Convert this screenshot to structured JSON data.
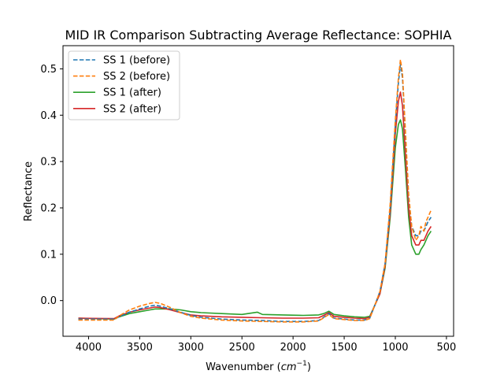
{
  "chart_data": {
    "type": "line",
    "title": "MID IR Comparison Subtracting Average Reflectance: SOPHIA",
    "xlabel_main": "Wavenumber (",
    "xlabel_unit_base": "cm",
    "xlabel_unit_exp": "−1",
    "xlabel_close": ")",
    "ylabel": "Reflectance",
    "xlim": [
      4250,
      430
    ],
    "ylim": [
      -0.077,
      0.55
    ],
    "x_reversed": true,
    "xticks": [
      4000,
      3500,
      3000,
      2500,
      2000,
      1500,
      1000,
      500
    ],
    "xtick_labels": [
      "4000",
      "3500",
      "3000",
      "2500",
      "2000",
      "1500",
      "1000",
      "500"
    ],
    "yticks": [
      0.0,
      0.1,
      0.2,
      0.3,
      0.4,
      0.5
    ],
    "ytick_labels": [
      "0.0",
      "0.1",
      "0.2",
      "0.3",
      "0.4",
      "0.5"
    ],
    "grid": false,
    "legend_position": "top-left",
    "series": [
      {
        "name": "SS 1 (before)",
        "color": "#1f77b4",
        "dash": "dashed",
        "x": [
          4100,
          3750,
          3700,
          3600,
          3500,
          3400,
          3350,
          3300,
          3200,
          3100,
          3000,
          2900,
          2700,
          2500,
          2300,
          2100,
          1900,
          1750,
          1700,
          1650,
          1600,
          1500,
          1400,
          1300,
          1250,
          1200,
          1150,
          1100,
          1050,
          1000,
          970,
          950,
          930,
          900,
          870,
          840,
          800,
          770,
          750,
          720,
          700,
          680,
          650
        ],
        "y": [
          -0.04,
          -0.04,
          -0.035,
          -0.025,
          -0.018,
          -0.012,
          -0.01,
          -0.012,
          -0.018,
          -0.025,
          -0.032,
          -0.036,
          -0.04,
          -0.042,
          -0.043,
          -0.045,
          -0.045,
          -0.043,
          -0.036,
          -0.028,
          -0.038,
          -0.04,
          -0.042,
          -0.042,
          -0.038,
          -0.01,
          0.02,
          0.08,
          0.2,
          0.38,
          0.47,
          0.51,
          0.48,
          0.35,
          0.22,
          0.16,
          0.14,
          0.14,
          0.15,
          0.15,
          0.16,
          0.17,
          0.18
        ]
      },
      {
        "name": "SS 2 (before)",
        "color": "#ff7f0e",
        "dash": "dashed",
        "x": [
          4100,
          3750,
          3700,
          3600,
          3500,
          3400,
          3350,
          3300,
          3200,
          3100,
          3000,
          2900,
          2700,
          2500,
          2300,
          2100,
          1900,
          1750,
          1700,
          1650,
          1600,
          1500,
          1400,
          1300,
          1250,
          1200,
          1150,
          1100,
          1050,
          1000,
          970,
          950,
          930,
          900,
          870,
          840,
          800,
          770,
          750,
          720,
          700,
          680,
          650
        ],
        "y": [
          -0.042,
          -0.042,
          -0.033,
          -0.02,
          -0.012,
          -0.006,
          -0.004,
          -0.006,
          -0.015,
          -0.026,
          -0.034,
          -0.038,
          -0.042,
          -0.044,
          -0.045,
          -0.046,
          -0.046,
          -0.044,
          -0.037,
          -0.03,
          -0.039,
          -0.041,
          -0.043,
          -0.043,
          -0.039,
          -0.01,
          0.02,
          0.08,
          0.21,
          0.39,
          0.48,
          0.52,
          0.49,
          0.36,
          0.23,
          0.16,
          0.13,
          0.14,
          0.16,
          0.15,
          0.17,
          0.18,
          0.195
        ]
      },
      {
        "name": "SS 1 (after)",
        "color": "#2ca02c",
        "dash": "solid",
        "x": [
          4100,
          3750,
          3700,
          3600,
          3500,
          3400,
          3350,
          3300,
          3200,
          3100,
          3000,
          2900,
          2700,
          2500,
          2350,
          2300,
          2100,
          1900,
          1750,
          1700,
          1650,
          1600,
          1500,
          1400,
          1300,
          1250,
          1200,
          1150,
          1100,
          1050,
          1000,
          970,
          950,
          930,
          900,
          870,
          840,
          800,
          770,
          750,
          720,
          700,
          680,
          650
        ],
        "y": [
          -0.038,
          -0.04,
          -0.035,
          -0.028,
          -0.024,
          -0.02,
          -0.018,
          -0.018,
          -0.018,
          -0.02,
          -0.024,
          -0.026,
          -0.028,
          -0.03,
          -0.025,
          -0.03,
          -0.031,
          -0.032,
          -0.031,
          -0.028,
          -0.023,
          -0.03,
          -0.033,
          -0.035,
          -0.036,
          -0.034,
          -0.01,
          0.015,
          0.07,
          0.18,
          0.33,
          0.38,
          0.39,
          0.37,
          0.28,
          0.18,
          0.12,
          0.1,
          0.1,
          0.11,
          0.12,
          0.13,
          0.14,
          0.15
        ]
      },
      {
        "name": "SS 2 (after)",
        "color": "#d62728",
        "dash": "solid",
        "x": [
          4100,
          3750,
          3700,
          3600,
          3500,
          3400,
          3350,
          3300,
          3200,
          3100,
          3000,
          2900,
          2700,
          2500,
          2300,
          2100,
          1900,
          1750,
          1700,
          1650,
          1600,
          1500,
          1400,
          1300,
          1250,
          1200,
          1150,
          1100,
          1050,
          1000,
          970,
          950,
          930,
          900,
          870,
          840,
          800,
          770,
          750,
          720,
          700,
          680,
          650
        ],
        "y": [
          -0.038,
          -0.039,
          -0.033,
          -0.025,
          -0.02,
          -0.016,
          -0.014,
          -0.015,
          -0.02,
          -0.026,
          -0.031,
          -0.033,
          -0.035,
          -0.036,
          -0.037,
          -0.038,
          -0.038,
          -0.037,
          -0.032,
          -0.026,
          -0.034,
          -0.036,
          -0.038,
          -0.039,
          -0.036,
          -0.01,
          0.015,
          0.075,
          0.19,
          0.36,
          0.43,
          0.45,
          0.42,
          0.31,
          0.2,
          0.14,
          0.12,
          0.12,
          0.13,
          0.13,
          0.14,
          0.15,
          0.16
        ]
      }
    ]
  }
}
